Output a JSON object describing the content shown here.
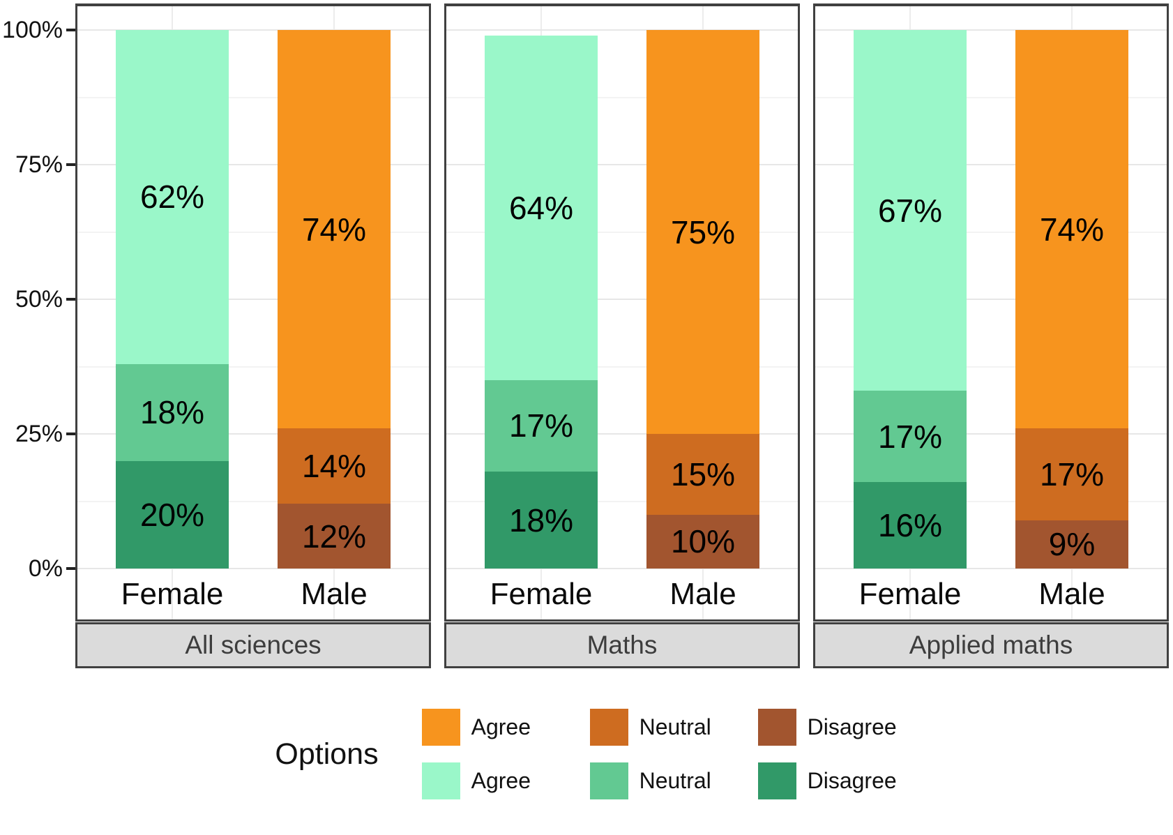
{
  "legend": {
    "title": "Options",
    "rows": [
      {
        "items": [
          {
            "label": "Agree",
            "color": "#F7941E"
          },
          {
            "label": "Neutral",
            "color": "#CE6C20"
          },
          {
            "label": "Disagree",
            "color": "#A2552F"
          }
        ]
      },
      {
        "items": [
          {
            "label": "Agree",
            "color": "#9AF7C9"
          },
          {
            "label": "Neutral",
            "color": "#62C992"
          },
          {
            "label": "Disagree",
            "color": "#319968"
          }
        ]
      }
    ]
  },
  "chart_data": {
    "type": "bar",
    "stacked": true,
    "percent": true,
    "ylim": [
      0,
      100
    ],
    "yticks": [
      {
        "value": 0,
        "label": "0%"
      },
      {
        "value": 25,
        "label": "25%"
      },
      {
        "value": 50,
        "label": "50%"
      },
      {
        "value": 75,
        "label": "75%"
      },
      {
        "value": 100,
        "label": "100%"
      }
    ],
    "grid": {
      "major_every": 25,
      "minor_every": 12.5
    },
    "legend_position": "bottom",
    "palettes": {
      "female": {
        "Agree": "#9AF7C9",
        "Neutral": "#62C992",
        "Disagree": "#319968"
      },
      "male": {
        "Agree": "#F7941E",
        "Neutral": "#CE6C20",
        "Disagree": "#A2552F"
      }
    },
    "facets": [
      {
        "label": "All sciences",
        "bars": [
          {
            "category": "Female",
            "palette": "female",
            "segments_top_to_bottom": [
              {
                "option": "Agree",
                "value": 62,
                "label": "62%"
              },
              {
                "option": "Neutral",
                "value": 18,
                "label": "18%"
              },
              {
                "option": "Disagree",
                "value": 20,
                "label": "20%"
              }
            ]
          },
          {
            "category": "Male",
            "palette": "male",
            "segments_top_to_bottom": [
              {
                "option": "Agree",
                "value": 74,
                "label": "74%"
              },
              {
                "option": "Neutral",
                "value": 14,
                "label": "14%"
              },
              {
                "option": "Disagree",
                "value": 12,
                "label": "12%"
              }
            ]
          }
        ]
      },
      {
        "label": "Maths",
        "bars": [
          {
            "category": "Female",
            "palette": "female",
            "segments_top_to_bottom": [
              {
                "option": "Agree",
                "value": 64,
                "label": "64%"
              },
              {
                "option": "Neutral",
                "value": 17,
                "label": "17%"
              },
              {
                "option": "Disagree",
                "value": 18,
                "label": "18%"
              }
            ]
          },
          {
            "category": "Male",
            "palette": "male",
            "segments_top_to_bottom": [
              {
                "option": "Agree",
                "value": 75,
                "label": "75%"
              },
              {
                "option": "Neutral",
                "value": 15,
                "label": "15%"
              },
              {
                "option": "Disagree",
                "value": 10,
                "label": "10%"
              }
            ]
          }
        ]
      },
      {
        "label": "Applied maths",
        "bars": [
          {
            "category": "Female",
            "palette": "female",
            "segments_top_to_bottom": [
              {
                "option": "Agree",
                "value": 67,
                "label": "67%"
              },
              {
                "option": "Neutral",
                "value": 17,
                "label": "17%"
              },
              {
                "option": "Disagree",
                "value": 16,
                "label": "16%"
              }
            ]
          },
          {
            "category": "Male",
            "palette": "male",
            "segments_top_to_bottom": [
              {
                "option": "Agree",
                "value": 74,
                "label": "74%"
              },
              {
                "option": "Neutral",
                "value": 17,
                "label": "17%"
              },
              {
                "option": "Disagree",
                "value": 9,
                "label": "9%"
              }
            ]
          }
        ]
      }
    ]
  }
}
